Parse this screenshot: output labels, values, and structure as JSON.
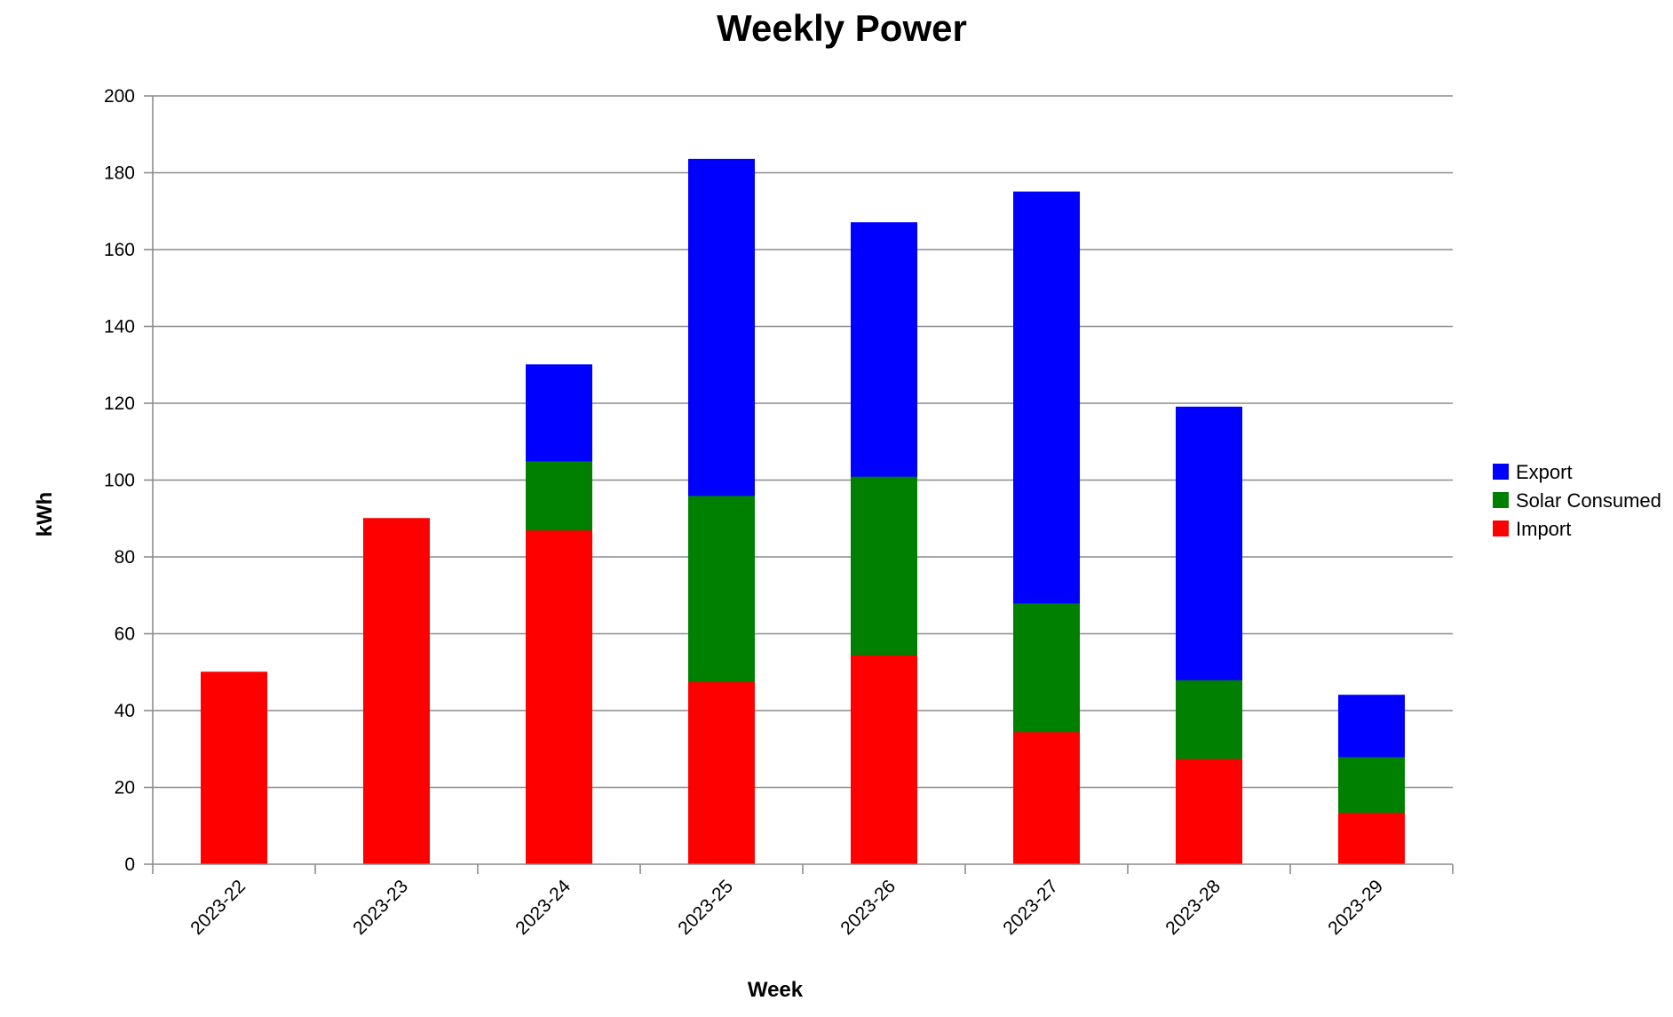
{
  "chart_data": {
    "type": "bar",
    "stacked": true,
    "title": "Weekly Power",
    "xlabel": "Week",
    "ylabel": "kWh",
    "ylim": [
      0,
      200
    ],
    "yticks": [
      0,
      20,
      40,
      60,
      80,
      100,
      120,
      140,
      160,
      180,
      200
    ],
    "grid": true,
    "legend_position": "right",
    "categories": [
      "2023-22",
      "2023-23",
      "2023-24",
      "2023-25",
      "2023-26",
      "2023-27",
      "2023-28",
      "2023-29"
    ],
    "series": [
      {
        "name": "Import",
        "color": "#ff0000",
        "values": [
          50,
          90,
          87,
          47.5,
          54.5,
          34.5,
          27.5,
          13.5
        ]
      },
      {
        "name": "Solar Consumed",
        "color": "#008000",
        "values": [
          0,
          0,
          18,
          48.5,
          46.5,
          33.5,
          20.5,
          14.5
        ]
      },
      {
        "name": "Export",
        "color": "#0000ff",
        "values": [
          0,
          0,
          25,
          87.5,
          66,
          107,
          71,
          16
        ]
      }
    ],
    "legend_order": [
      "Export",
      "Solar Consumed",
      "Import"
    ]
  }
}
